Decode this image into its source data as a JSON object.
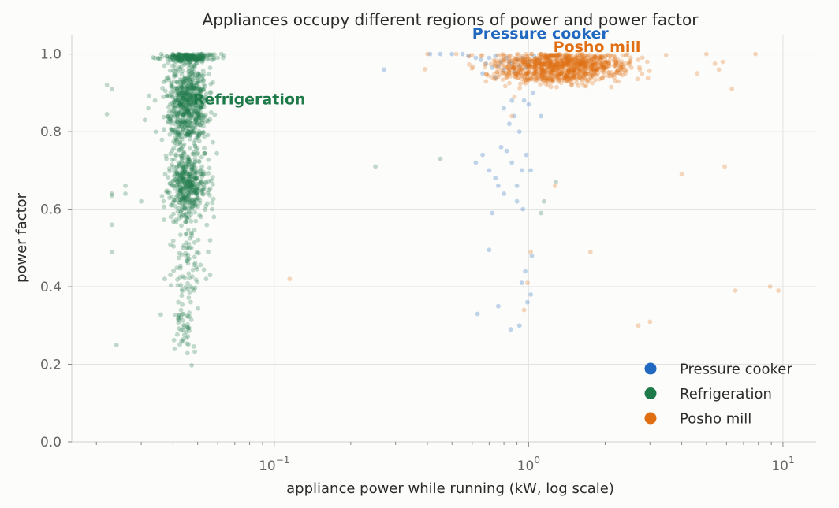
{
  "chart_data": {
    "type": "scatter",
    "title": "Appliances occupy different regions of power and power factor",
    "xlabel": "appliance power while running (kW, log scale)",
    "ylabel": "power factor",
    "x_scale": "log",
    "xlim": [
      0.016,
      13.5
    ],
    "ylim": [
      0,
      1.05
    ],
    "x_ticks": [
      {
        "value": 0.1,
        "base": "10",
        "exp": "−1"
      },
      {
        "value": 1,
        "base": "10",
        "exp": "0"
      },
      {
        "value": 10,
        "base": "10",
        "exp": "1"
      }
    ],
    "y_ticks": [
      {
        "value": 0.0,
        "label": "0.0"
      },
      {
        "value": 0.2,
        "label": "0.2"
      },
      {
        "value": 0.4,
        "label": "0.4"
      },
      {
        "value": 0.6,
        "label": "0.6"
      },
      {
        "value": 0.8,
        "label": "0.8"
      },
      {
        "value": 1.0,
        "label": "1.0"
      }
    ],
    "grid": true,
    "legend_position": "bottom-right",
    "series": [
      {
        "name": "Pressure cooker",
        "color": "#2068c0",
        "label_anchor": {
          "x": 0.6,
          "y": 1.04
        },
        "points": [
          [
            0.62,
            0.99
          ],
          [
            0.65,
            0.985
          ],
          [
            0.7,
            0.99
          ],
          [
            0.74,
            0.995
          ],
          [
            0.78,
            0.98
          ],
          [
            0.82,
            0.99
          ],
          [
            0.86,
            0.975
          ],
          [
            0.9,
            0.985
          ],
          [
            0.95,
            0.99
          ],
          [
            1.0,
            0.98
          ],
          [
            1.05,
            0.995
          ],
          [
            1.1,
            0.985
          ],
          [
            1.2,
            0.99
          ],
          [
            1.3,
            0.995
          ],
          [
            0.68,
            0.975
          ],
          [
            0.72,
            0.965
          ],
          [
            0.8,
            0.96
          ],
          [
            0.88,
            0.955
          ],
          [
            0.92,
            0.97
          ],
          [
            0.98,
            0.965
          ],
          [
            0.76,
            0.97
          ],
          [
            0.84,
            0.98
          ],
          [
            0.58,
            0.995
          ],
          [
            0.55,
            1.0
          ],
          [
            0.5,
            1.0
          ],
          [
            0.45,
            1.0
          ],
          [
            0.41,
            1.0
          ],
          [
            1.4,
            0.99
          ],
          [
            0.66,
            0.95
          ],
          [
            0.74,
            0.94
          ],
          [
            0.27,
            0.96
          ],
          [
            0.62,
            0.72
          ],
          [
            0.66,
            0.74
          ],
          [
            0.7,
            0.7
          ],
          [
            0.74,
            0.68
          ],
          [
            0.78,
            0.76
          ],
          [
            0.82,
            0.75
          ],
          [
            0.86,
            0.72
          ],
          [
            0.9,
            0.66
          ],
          [
            0.94,
            0.7
          ],
          [
            0.98,
            0.74
          ],
          [
            1.02,
            0.7
          ],
          [
            0.8,
            0.86
          ],
          [
            0.84,
            0.82
          ],
          [
            0.88,
            0.84
          ],
          [
            0.92,
            0.8
          ],
          [
            0.96,
            0.88
          ],
          [
            1.0,
            0.87
          ],
          [
            1.04,
            0.9
          ],
          [
            0.86,
            0.88
          ],
          [
            0.9,
            0.62
          ],
          [
            0.76,
            0.66
          ],
          [
            0.8,
            0.64
          ],
          [
            0.72,
            0.59
          ],
          [
            0.7,
            0.495
          ],
          [
            1.03,
            0.48
          ],
          [
            0.94,
            0.41
          ],
          [
            0.97,
            0.44
          ],
          [
            0.76,
            0.35
          ],
          [
            0.85,
            0.29
          ],
          [
            0.92,
            0.3
          ],
          [
            0.63,
            0.33
          ],
          [
            0.99,
            0.36
          ],
          [
            1.02,
            0.38
          ],
          [
            1.12,
            0.84
          ],
          [
            0.95,
            0.6
          ]
        ]
      },
      {
        "name": "Refrigeration",
        "color": "#1f7a4a",
        "label_anchor": {
          "x": 0.048,
          "y": 0.87
        },
        "points": [
          [
            0.022,
            0.845
          ],
          [
            0.022,
            0.92
          ],
          [
            0.023,
            0.91
          ],
          [
            0.023,
            0.64
          ],
          [
            0.023,
            0.635
          ],
          [
            0.024,
            0.25
          ],
          [
            0.023,
            0.56
          ],
          [
            0.023,
            0.49
          ],
          [
            0.026,
            0.66
          ],
          [
            0.026,
            0.64
          ],
          [
            0.03,
            0.62
          ],
          [
            0.031,
            0.83
          ],
          [
            0.032,
            0.86
          ],
          [
            0.034,
            0.88
          ],
          [
            0.035,
            0.99
          ],
          [
            0.036,
            1.0
          ],
          [
            0.037,
            0.97
          ],
          [
            0.058,
            0.99
          ],
          [
            0.06,
            0.99
          ],
          [
            0.062,
            1.0
          ],
          [
            0.063,
            0.99
          ],
          [
            0.057,
            0.6
          ],
          [
            0.058,
            0.58
          ],
          [
            0.056,
            0.52
          ],
          [
            0.055,
            0.49
          ],
          [
            0.056,
            0.43
          ],
          [
            0.054,
            0.42
          ],
          [
            0.25,
            0.71
          ],
          [
            0.45,
            0.73
          ],
          [
            1.28,
            0.67
          ],
          [
            1.12,
            0.59
          ],
          [
            1.15,
            0.62
          ],
          [
            0.042,
            0.36
          ],
          [
            0.043,
            0.34
          ],
          [
            0.044,
            0.33
          ]
        ],
        "clusters": [
          {
            "cx": 0.0455,
            "cy": 0.992,
            "sx": 0.045,
            "sy": 0.006,
            "n": 200
          },
          {
            "cx": 0.0455,
            "cy": 0.87,
            "sx": 0.04,
            "sy": 0.055,
            "n": 650
          },
          {
            "cx": 0.0455,
            "cy": 0.66,
            "sx": 0.04,
            "sy": 0.045,
            "n": 420
          },
          {
            "cx": 0.0455,
            "cy": 0.46,
            "sx": 0.03,
            "sy": 0.08,
            "n": 90
          },
          {
            "cx": 0.0445,
            "cy": 0.28,
            "sx": 0.02,
            "sy": 0.03,
            "n": 35
          }
        ]
      },
      {
        "name": "Posho mill",
        "color": "#e06e12",
        "label_anchor": {
          "x": 1.25,
          "y": 1.005
        },
        "points": [
          [
            0.4,
            1.0
          ],
          [
            0.52,
            1.0
          ],
          [
            2.5,
            0.98
          ],
          [
            2.7,
            0.985
          ],
          [
            5.0,
            1.0
          ],
          [
            5.4,
            0.975
          ],
          [
            5.8,
            0.98
          ],
          [
            7.8,
            1.0
          ],
          [
            4.6,
            0.95
          ],
          [
            5.6,
            0.96
          ],
          [
            6.3,
            0.91
          ],
          [
            4.0,
            0.69
          ],
          [
            5.9,
            0.71
          ],
          [
            1.27,
            0.66
          ],
          [
            1.02,
            0.49
          ],
          [
            1.75,
            0.49
          ],
          [
            0.115,
            0.42
          ],
          [
            0.99,
            0.41
          ],
          [
            0.96,
            0.34
          ],
          [
            6.5,
            0.39
          ],
          [
            8.9,
            0.4
          ],
          [
            9.6,
            0.39
          ],
          [
            2.7,
            0.3
          ],
          [
            3.0,
            0.31
          ],
          [
            0.86,
            0.84
          ],
          [
            0.88,
            0.89
          ],
          [
            2.4,
            0.95
          ],
          [
            2.2,
            0.93
          ]
        ],
        "clusters": [
          {
            "cx": 1.35,
            "cy": 0.975,
            "sx": 0.13,
            "sy": 0.016,
            "n": 700
          },
          {
            "cx": 1.25,
            "cy": 0.945,
            "sx": 0.12,
            "sy": 0.012,
            "n": 250
          }
        ]
      }
    ]
  }
}
